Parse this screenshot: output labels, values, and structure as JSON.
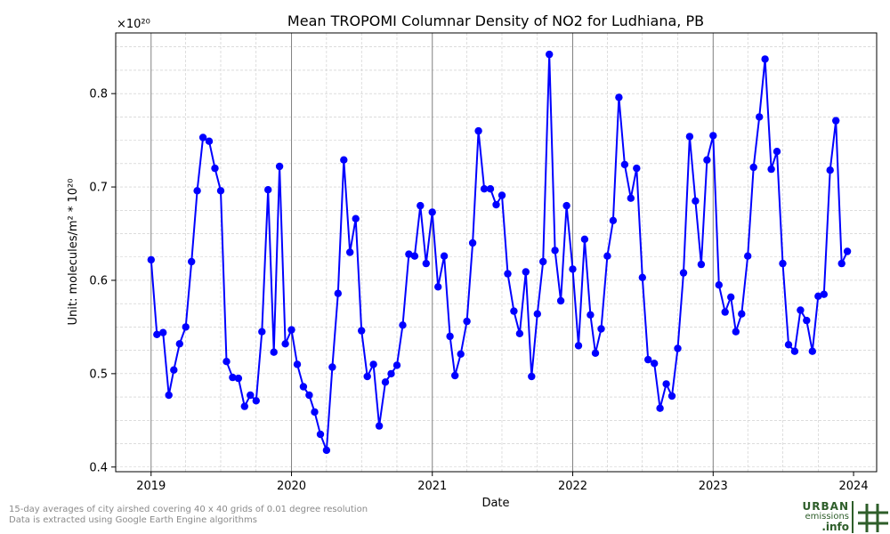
{
  "chart_data": {
    "type": "line",
    "title": "Mean TROPOMI Columnar Density of NO2 for Ludhiana, PB",
    "xlabel": "Date",
    "ylabel": "Unit: molecules/m² * 10²⁰",
    "scale_label": "×10²⁰",
    "x_range": [
      "2018-10-01",
      "2024-03-01"
    ],
    "ylim": [
      0.395,
      0.865
    ],
    "grid": true,
    "x_ticks": [
      "2019",
      "2020",
      "2021",
      "2022",
      "2023",
      "2024"
    ],
    "y_ticks": [
      "0.4",
      "0.5",
      "0.6",
      "0.7",
      "0.8"
    ],
    "line_color": "#0000ff",
    "marker_color": "#0000ff",
    "series": [
      {
        "x": [
          "2019-01-01",
          "2019-01-16",
          "2019-02-01",
          "2019-02-16",
          "2019-03-01",
          "2019-03-16",
          "2019-04-01",
          "2019-04-16",
          "2019-05-01",
          "2019-05-16",
          "2019-06-01",
          "2019-06-16",
          "2019-07-01",
          "2019-07-16",
          "2019-08-01",
          "2019-08-16",
          "2019-09-01",
          "2019-09-16",
          "2019-10-01",
          "2019-10-16",
          "2019-11-01",
          "2019-11-16",
          "2019-12-01",
          "2019-12-16",
          "2020-01-01",
          "2020-01-16",
          "2020-02-01",
          "2020-02-16",
          "2020-03-01",
          "2020-03-16",
          "2020-04-01",
          "2020-04-16",
          "2020-05-01",
          "2020-05-16",
          "2020-06-01",
          "2020-06-16",
          "2020-07-01",
          "2020-07-16",
          "2020-08-01",
          "2020-08-16",
          "2020-09-01",
          "2020-09-16",
          "2020-10-01",
          "2020-10-16",
          "2020-11-01",
          "2020-11-16",
          "2020-12-01",
          "2020-12-16",
          "2021-01-01",
          "2021-01-16",
          "2021-02-01",
          "2021-02-16",
          "2021-03-01",
          "2021-03-16",
          "2021-04-01",
          "2021-04-16",
          "2021-05-01",
          "2021-05-16",
          "2021-06-01",
          "2021-06-16",
          "2021-07-01",
          "2021-07-16",
          "2021-08-01",
          "2021-08-16",
          "2021-09-01",
          "2021-09-16",
          "2021-10-01",
          "2021-10-16",
          "2021-11-01",
          "2021-11-16",
          "2021-12-01",
          "2021-12-16",
          "2022-01-01",
          "2022-01-16",
          "2022-02-01",
          "2022-02-16",
          "2022-03-01",
          "2022-03-16",
          "2022-04-01",
          "2022-04-16",
          "2022-05-01",
          "2022-05-16",
          "2022-06-01",
          "2022-06-16",
          "2022-07-01",
          "2022-07-16",
          "2022-08-01",
          "2022-08-16",
          "2022-09-01",
          "2022-09-16",
          "2022-10-01",
          "2022-10-16",
          "2022-11-01",
          "2022-11-16",
          "2022-12-01",
          "2022-12-16",
          "2023-01-01",
          "2023-01-16",
          "2023-02-01",
          "2023-02-16",
          "2023-03-01",
          "2023-03-16",
          "2023-04-01",
          "2023-04-16",
          "2023-05-01",
          "2023-05-16",
          "2023-06-01",
          "2023-06-16",
          "2023-07-01",
          "2023-07-16",
          "2023-08-01",
          "2023-08-16",
          "2023-09-01",
          "2023-09-16",
          "2023-10-01",
          "2023-10-16",
          "2023-11-01",
          "2023-11-16",
          "2023-12-01",
          "2023-12-16"
        ],
        "y": [
          0.622,
          0.542,
          0.544,
          0.477,
          0.504,
          0.532,
          0.55,
          0.62,
          0.696,
          0.753,
          0.749,
          0.72,
          0.696,
          0.513,
          0.496,
          0.495,
          0.465,
          0.477,
          0.471,
          0.545,
          0.697,
          0.523,
          0.722,
          0.532,
          0.547,
          0.51,
          0.486,
          0.477,
          0.459,
          0.435,
          0.418,
          0.507,
          0.586,
          0.729,
          0.63,
          0.666,
          0.546,
          0.497,
          0.51,
          0.444,
          0.491,
          0.5,
          0.509,
          0.552,
          0.628,
          0.626,
          0.68,
          0.618,
          0.673,
          0.593,
          0.626,
          0.54,
          0.498,
          0.521,
          0.556,
          0.64,
          0.76,
          0.698,
          0.698,
          0.681,
          0.691,
          0.607,
          0.567,
          0.543,
          0.609,
          0.497,
          0.564,
          0.62,
          0.842,
          0.632,
          0.578,
          0.68,
          0.612,
          0.53,
          0.644,
          0.563,
          0.522,
          0.548,
          0.626,
          0.664,
          0.796,
          0.724,
          0.688,
          0.72,
          0.603,
          0.515,
          0.511,
          0.463,
          0.489,
          0.476,
          0.527,
          0.608,
          0.754,
          0.685,
          0.617,
          0.729,
          0.755,
          0.595,
          0.566,
          0.582,
          0.545,
          0.564,
          0.626,
          0.721,
          0.775,
          0.837,
          0.719,
          0.738,
          0.618,
          0.531,
          0.524,
          0.568,
          0.557,
          0.524,
          0.583,
          0.585,
          0.718,
          0.771,
          0.618,
          0.631
        ]
      }
    ]
  },
  "footnote": {
    "line1": "15-day averages of city airshed covering 40 x 40 grids of 0.01 degree resolution",
    "line2": "Data is extracted using Google Earth Engine algorithms"
  },
  "logo": {
    "line1": "URBAN",
    "line2": "emissions",
    "line3": ".info",
    "color": "#2e5e2a",
    "icon": "hash-grid-icon"
  }
}
